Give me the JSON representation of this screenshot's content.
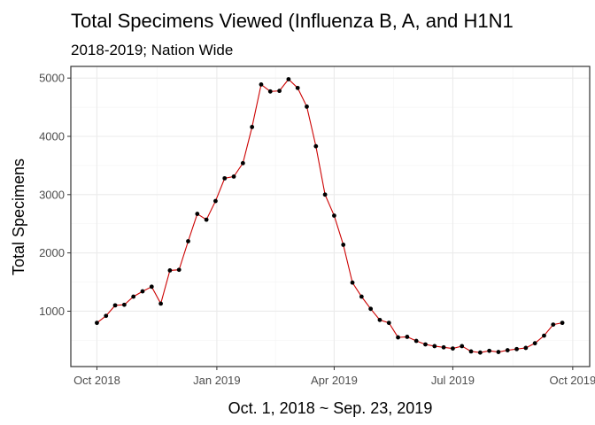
{
  "chart_data": {
    "type": "line",
    "title": "Total Specimens Viewed (Influenza B, A, and H1N1",
    "subtitle": "2018-2019; Nation Wide",
    "xlabel": "Oct. 1, 2018 ~ Sep. 23, 2019",
    "ylabel": "Total Specimens",
    "x_tick_labels": [
      {
        "date": "2018-10-01",
        "label": "Oct 2018"
      },
      {
        "date": "2019-01-01",
        "label": "Jan 2019"
      },
      {
        "date": "2019-04-01",
        "label": "Apr 2019"
      },
      {
        "date": "2019-07-01",
        "label": "Jul 2019"
      },
      {
        "date": "2019-10-01",
        "label": "Oct 2019"
      }
    ],
    "y_ticks": [
      1000,
      2000,
      3000,
      4000,
      5000
    ],
    "xlim": [
      "2018-09-11",
      "2019-10-14"
    ],
    "ylim": [
      50,
      5200
    ],
    "grid": true,
    "line_color": "#cc0000",
    "point_color": "#000000",
    "series": [
      {
        "x": [
          "2018-10-01",
          "2018-10-08",
          "2018-10-15",
          "2018-10-22",
          "2018-10-29",
          "2018-11-05",
          "2018-11-12",
          "2018-11-19",
          "2018-11-26",
          "2018-12-03",
          "2018-12-10",
          "2018-12-17",
          "2018-12-24",
          "2018-12-31",
          "2019-01-07",
          "2019-01-14",
          "2019-01-21",
          "2019-01-28",
          "2019-02-04",
          "2019-02-11",
          "2019-02-18",
          "2019-02-25",
          "2019-03-04",
          "2019-03-11",
          "2019-03-18",
          "2019-03-25",
          "2019-04-01",
          "2019-04-08",
          "2019-04-15",
          "2019-04-22",
          "2019-04-29",
          "2019-05-06",
          "2019-05-13",
          "2019-05-20",
          "2019-05-27",
          "2019-06-03",
          "2019-06-10",
          "2019-06-17",
          "2019-06-24",
          "2019-07-01",
          "2019-07-08",
          "2019-07-15",
          "2019-07-22",
          "2019-07-29",
          "2019-08-05",
          "2019-08-12",
          "2019-08-19",
          "2019-08-26",
          "2019-09-02",
          "2019-09-09",
          "2019-09-16",
          "2019-09-23"
        ],
        "values": [
          800,
          920,
          1100,
          1110,
          1250,
          1340,
          1420,
          1130,
          1700,
          1710,
          2200,
          2670,
          2570,
          2890,
          3280,
          3310,
          3540,
          4160,
          4890,
          4770,
          4780,
          4980,
          4830,
          4510,
          3830,
          3000,
          2640,
          2140,
          1490,
          1250,
          1040,
          850,
          800,
          550,
          560,
          490,
          430,
          400,
          380,
          360,
          400,
          310,
          290,
          320,
          300,
          330,
          350,
          370,
          450,
          580,
          770,
          800
        ]
      }
    ]
  }
}
